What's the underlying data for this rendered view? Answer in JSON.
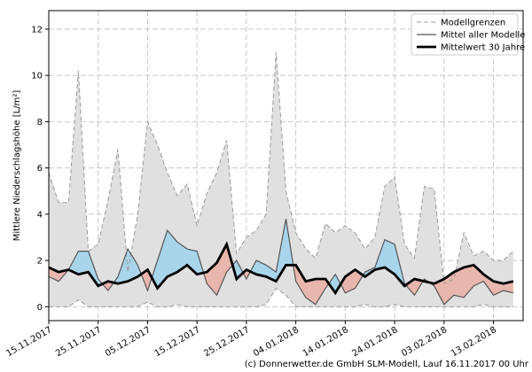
{
  "chart_data": {
    "type": "line",
    "ylabel": "Mittlere Niederschlagshöhe [L/m²]",
    "footer": "(c) Donnerwetter.de GmbH SLM-Modell, Lauf 16.11.2017 00 Uhr",
    "x": [
      "15.11.2017",
      "17.11.2017",
      "19.11.2017",
      "21.11.2017",
      "23.11.2017",
      "25.11.2017",
      "27.11.2017",
      "29.11.2017",
      "01.12.2017",
      "03.12.2017",
      "05.12.2017",
      "07.12.2017",
      "09.12.2017",
      "11.12.2017",
      "13.12.2017",
      "15.12.2017",
      "17.12.2017",
      "19.12.2017",
      "21.12.2017",
      "23.12.2017",
      "25.12.2017",
      "27.12.2017",
      "29.12.2017",
      "31.12.2017",
      "02.01.2018",
      "04.01.2018",
      "06.01.2018",
      "08.01.2018",
      "10.01.2018",
      "12.01.2018",
      "14.01.2018",
      "16.01.2018",
      "18.01.2018",
      "20.01.2018",
      "22.01.2018",
      "24.01.2018",
      "26.01.2018",
      "28.01.2018",
      "30.01.2018",
      "01.02.2018",
      "03.02.2018",
      "05.02.2018",
      "07.02.2018",
      "09.02.2018",
      "11.02.2018",
      "13.02.2018",
      "15.02.2018",
      "17.02.2018"
    ],
    "xlim": [
      "15.11.2017",
      "19.02.2018"
    ],
    "xticks": [
      "15.11.2017",
      "25.11.2017",
      "05.12.2017",
      "15.12.2017",
      "25.12.2017",
      "04.01.2018",
      "14.01.2018",
      "24.01.2018",
      "03.02.2018",
      "13.02.2018"
    ],
    "ylim": [
      -0.6,
      12.8
    ],
    "yticks": [
      0,
      2,
      4,
      6,
      8,
      10,
      12
    ],
    "grid": true,
    "legend": "upper right",
    "band_color": "#e0e0e0",
    "above_color": "#a8d5ea",
    "below_color": "#e9b6ae",
    "series": [
      {
        "name": "Modellgrenzen",
        "color": "#9a9a9a",
        "values": [
          5.8,
          4.5,
          4.5,
          10.2,
          2.4,
          2.7,
          4.6,
          6.8,
          1.5,
          4,
          8,
          7,
          5.8,
          4.8,
          5.3,
          3.5,
          4.9,
          5.8,
          7.2,
          2.3,
          3,
          3.3,
          4,
          11,
          5,
          3.2,
          2.5,
          2.1,
          3.6,
          3.2,
          3.5,
          3.2,
          2.5,
          3,
          5.2,
          5.6,
          2.7,
          2.1,
          5.2,
          5.1,
          1,
          1.2,
          3.2,
          2.2,
          2.4,
          2,
          2,
          2.4
        ],
        "low": [
          0,
          0,
          0,
          0.3,
          0,
          0,
          0,
          0,
          0,
          0,
          0.2,
          0,
          0,
          0.1,
          0,
          0,
          0,
          0,
          0,
          0,
          0,
          0,
          0.1,
          0.8,
          0.5,
          0,
          0,
          0,
          0,
          0,
          0,
          0,
          0.1,
          0,
          0,
          0.1,
          0,
          0,
          0,
          0,
          0,
          0,
          0,
          0,
          0.1,
          0,
          0,
          0
        ]
      },
      {
        "name": "Mittel aller Modelle",
        "color": "#555555",
        "values": [
          1.3,
          1.1,
          1.6,
          2.4,
          2.4,
          1.2,
          0.7,
          1.3,
          2.5,
          1.8,
          0.7,
          2.0,
          3.3,
          2.8,
          2.5,
          2.4,
          1.0,
          0.5,
          1.5,
          2.0,
          1.2,
          2.0,
          1.8,
          1.5,
          3.8,
          1.1,
          0.4,
          0.1,
          0.8,
          1.4,
          0.6,
          0.8,
          1.5,
          1.7,
          2.9,
          2.7,
          1.0,
          0.5,
          1.2,
          0.9,
          0.1,
          0.5,
          0.4,
          0.9,
          1.1,
          0.5,
          0.7,
          0.6
        ]
      },
      {
        "name": "Mittelwert 30 Jahre",
        "color": "#000000",
        "values": [
          1.7,
          1.5,
          1.6,
          1.4,
          1.5,
          0.9,
          1.1,
          1.0,
          1.1,
          1.3,
          1.6,
          0.8,
          1.3,
          1.5,
          1.8,
          1.4,
          1.5,
          1.9,
          2.7,
          1.2,
          1.6,
          1.4,
          1.3,
          1.1,
          1.8,
          1.8,
          1.1,
          1.2,
          1.2,
          0.6,
          1.3,
          1.6,
          1.3,
          1.6,
          1.7,
          1.4,
          0.9,
          1.2,
          1.1,
          1.0,
          1.2,
          1.5,
          1.7,
          1.8,
          1.4,
          1.1,
          1.0,
          1.1
        ]
      }
    ]
  }
}
